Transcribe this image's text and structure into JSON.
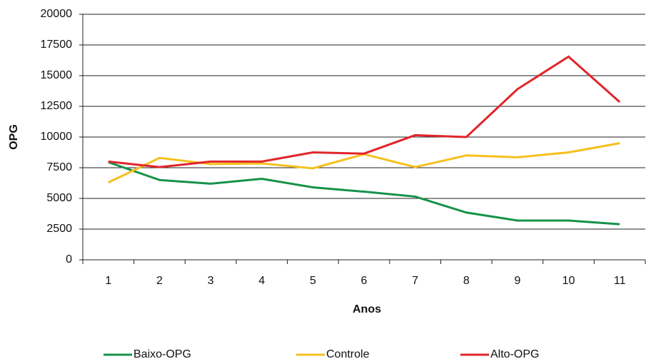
{
  "chart_data": {
    "type": "line",
    "x_label": "Anos",
    "y_label": "OPG",
    "categories": [
      "1",
      "2",
      "3",
      "4",
      "5",
      "6",
      "7",
      "8",
      "9",
      "10",
      "11"
    ],
    "series": [
      {
        "name": "Baixo-OPG",
        "color": "#16924a",
        "values": [
          7950,
          6500,
          6200,
          6600,
          5900,
          5550,
          5150,
          3850,
          3200,
          3200,
          2900
        ]
      },
      {
        "name": "Controle",
        "color": "#f5c01e",
        "values": [
          6300,
          8300,
          7800,
          7850,
          7450,
          8600,
          7550,
          8500,
          8350,
          8750,
          9500
        ]
      },
      {
        "name": "Alto-OPG",
        "color": "#e1252b",
        "values": [
          8000,
          7550,
          8000,
          8000,
          8750,
          8650,
          10150,
          10000,
          13900,
          16550,
          12850
        ]
      }
    ],
    "ylim": [
      0,
      20000
    ],
    "yticks": [
      0,
      2500,
      5000,
      7500,
      10000,
      12500,
      15000,
      17500,
      20000
    ],
    "grid": true
  }
}
